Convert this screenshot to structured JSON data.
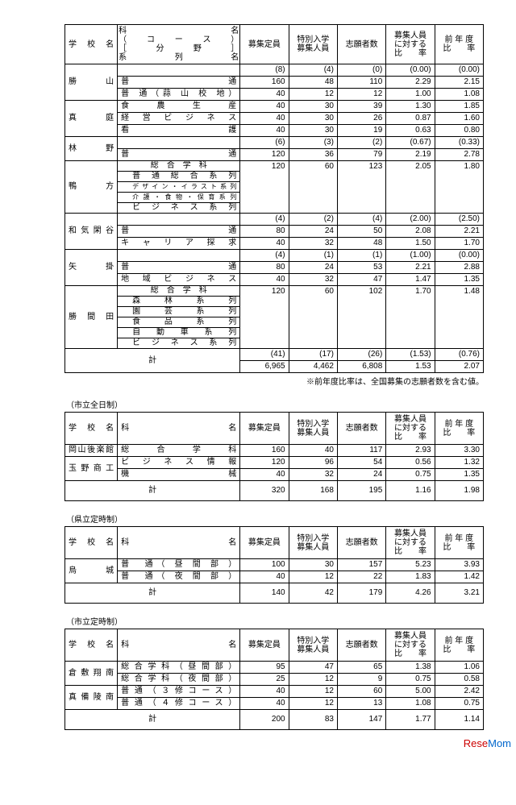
{
  "headers": {
    "school": "学　校　名",
    "dept_main": "科　　　　　名\n（　コ　ー　ス　）\n［　　分　　野　　］\n系　　列　　名",
    "dept_short": "科　　　　　名",
    "boshu": "募集定員",
    "tokubetsu": "特別入学\n募集人員",
    "shigan": "志願者数",
    "ratio": "募集人員\nに対する\n比　　率",
    "prev": "前　年　度\n比　　　率"
  },
  "note": "※前年度比率は、全国募集の志願者数を含む値。",
  "section_labels": {
    "t2": "（市立全日制）",
    "t3": "（県立定時制）",
    "t4": "（市立定時制）"
  },
  "t1": {
    "rows": [
      {
        "school": "勝　　山",
        "depts": [
          {
            "name": "",
            "paren": [
              "(8)",
              "(4)",
              "(0)",
              "(0.00)",
              "(0.00)"
            ]
          },
          {
            "name": "普　　　　　　　　通",
            "vals": [
              "160",
              "48",
              "110",
              "2.29",
              "2.15"
            ]
          },
          {
            "name": "普 通（蒜 山 校 地）",
            "vals": [
              "40",
              "12",
              "12",
              "1.00",
              "1.08"
            ]
          }
        ]
      },
      {
        "school": "真　　庭",
        "depts": [
          {
            "name": "食　　農　　生　　産",
            "vals": [
              "40",
              "30",
              "39",
              "1.30",
              "1.85"
            ]
          },
          {
            "name": "経 営 ビ ジ ネ ス",
            "vals": [
              "40",
              "30",
              "26",
              "0.87",
              "1.60"
            ]
          },
          {
            "name": "看　　　　　　　　護",
            "vals": [
              "40",
              "30",
              "19",
              "0.63",
              "0.80"
            ]
          }
        ]
      },
      {
        "school": "林　　野",
        "depts": [
          {
            "name": "",
            "paren": [
              "(6)",
              "(3)",
              "(2)",
              "(0.67)",
              "(0.33)"
            ]
          },
          {
            "name": "普　　　　　　　　通",
            "vals": [
              "120",
              "36",
              "79",
              "2.19",
              "2.78"
            ]
          }
        ]
      },
      {
        "school": "鴨　　方",
        "depts": [
          {
            "name": "総　合　学　科",
            "vals": [
              "120",
              "60",
              "123",
              "2.05",
              "1.80"
            ],
            "head": true
          },
          {
            "name": "普 通 総 合 系 列",
            "sub": true
          },
          {
            "name": "デザイン・イラスト系列",
            "sub": true,
            "small": true
          },
          {
            "name": "介護・食物・保育系列",
            "sub": true,
            "small": true
          },
          {
            "name": "ビ ジ ネ ス 系 列",
            "sub": true
          }
        ]
      },
      {
        "school": "和気閑谷",
        "depts": [
          {
            "name": "",
            "paren": [
              "(4)",
              "(2)",
              "(4)",
              "(2.00)",
              "(2.50)"
            ]
          },
          {
            "name": "普　　　　　　　　通",
            "vals": [
              "80",
              "24",
              "50",
              "2.08",
              "2.21"
            ]
          },
          {
            "name": "キ ャ リ ア 探 求",
            "vals": [
              "40",
              "32",
              "48",
              "1.50",
              "1.70"
            ]
          }
        ]
      },
      {
        "school": "矢　　掛",
        "depts": [
          {
            "name": "",
            "paren": [
              "(4)",
              "(1)",
              "(1)",
              "(1.00)",
              "(0.00)"
            ]
          },
          {
            "name": "普　　　　　　　　通",
            "vals": [
              "80",
              "24",
              "53",
              "2.21",
              "2.88"
            ]
          },
          {
            "name": "地 域 ビ ジ ネ ス",
            "vals": [
              "40",
              "32",
              "47",
              "1.47",
              "1.35"
            ]
          }
        ]
      },
      {
        "school": "勝 間 田",
        "depts": [
          {
            "name": "総　合　学　科",
            "vals": [
              "120",
              "60",
              "102",
              "1.70",
              "1.48"
            ],
            "head": true
          },
          {
            "name": "森　林　系　列",
            "sub": true
          },
          {
            "name": "園　芸　系　列",
            "sub": true
          },
          {
            "name": "食　品　系　列",
            "sub": true
          },
          {
            "name": "自 動 車 系 列",
            "sub": true
          },
          {
            "name": "ビ ジ ネ ス 系 列",
            "sub": true
          }
        ]
      }
    ],
    "total_paren": [
      "(41)",
      "(17)",
      "(26)",
      "(1.53)",
      "(0.76)"
    ],
    "total": [
      "6,965",
      "4,462",
      "6,808",
      "1.53",
      "2.07"
    ],
    "total_label": "計"
  },
  "t2": {
    "rows": [
      {
        "school": "岡山後楽館",
        "dept": "総　合　学　科",
        "vals": [
          "160",
          "40",
          "117",
          "2.93",
          "3.30"
        ]
      },
      {
        "school": "玉野商工",
        "dept": "ビ ジ ネ ス 情 報",
        "vals": [
          "120",
          "96",
          "54",
          "0.56",
          "1.32"
        ],
        "rowspan": 2
      },
      {
        "dept": "機　　　　　　　　械",
        "vals": [
          "40",
          "32",
          "24",
          "0.75",
          "1.35"
        ]
      }
    ],
    "total": [
      "320",
      "168",
      "195",
      "1.16",
      "1.98"
    ],
    "total_label": "計"
  },
  "t3": {
    "rows": [
      {
        "school": "烏　　城",
        "dept": "普　通（ 昼 間 部 ）",
        "vals": [
          "100",
          "30",
          "157",
          "5.23",
          "3.93"
        ],
        "rowspan": 2
      },
      {
        "dept": "普　通（ 夜 間 部 ）",
        "vals": [
          "40",
          "12",
          "22",
          "1.83",
          "1.42"
        ]
      }
    ],
    "total": [
      "140",
      "42",
      "179",
      "4.26",
      "3.21"
    ],
    "total_label": "計"
  },
  "t4": {
    "rows": [
      {
        "school": "倉敷翔南",
        "dept": "総合学科（昼間部）",
        "vals": [
          "95",
          "47",
          "65",
          "1.38",
          "1.06"
        ],
        "rowspan": 2
      },
      {
        "dept": "総合学科（夜間部）",
        "vals": [
          "25",
          "12",
          "9",
          "0.75",
          "0.58"
        ]
      },
      {
        "school": "真備陵南",
        "dept": "普通（３修コース）",
        "vals": [
          "40",
          "12",
          "60",
          "5.00",
          "2.42"
        ],
        "rowspan": 2
      },
      {
        "dept": "普通（４修コース）",
        "vals": [
          "40",
          "12",
          "13",
          "1.08",
          "0.75"
        ]
      }
    ],
    "total": [
      "200",
      "83",
      "147",
      "1.77",
      "1.14"
    ],
    "total_label": "計"
  },
  "watermark": "ReseMom"
}
